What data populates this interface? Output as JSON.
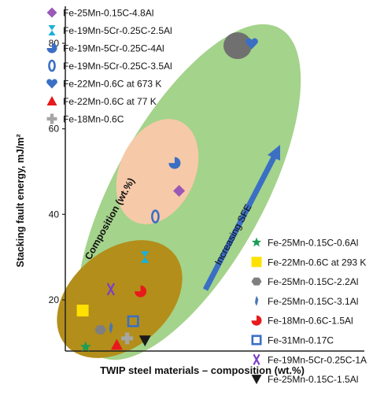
{
  "chart_data": {
    "type": "scatter",
    "title": "",
    "xlabel": "TWIP steel materials – composition (wt.%)",
    "ylabel": "Stacking fault energy, mJ/m²",
    "ylim": [
      0,
      90
    ],
    "yticks": [
      20,
      40,
      60,
      80
    ],
    "grid": false,
    "legend_position": "top-left and bottom-right",
    "x_is_categorical_spread": true,
    "regions": [
      {
        "label": "Composition (wt.%)",
        "color": "#a4d38b",
        "role": "large-ellipse"
      },
      {
        "label": "",
        "color": "#f6c9a8",
        "role": "inner-ellipse"
      },
      {
        "label": "",
        "color": "#b38e1a",
        "role": "lower-ellipse"
      },
      {
        "label": "",
        "color": "#707070",
        "role": "top-circle"
      }
    ],
    "arrow_label": "Increasing SFE",
    "arrow_color": "#3a6fc4",
    "series": [
      {
        "name": "Fe-25Mn-0.15C-4.8Al",
        "marker": "diamond",
        "color": "#9b59b6",
        "points": [
          [
            0.73,
            45.5
          ]
        ]
      },
      {
        "name": "Fe-19Mn-5Cr-0.25C-2.5Al",
        "marker": "hourglass",
        "color": "#1ab0d8",
        "points": [
          [
            0.5,
            30
          ]
        ]
      },
      {
        "name": "Fe-19Mn-5Cr-0.25C-4Al",
        "marker": "pie-three-quarter",
        "color": "#3a6fc4",
        "points": [
          [
            0.7,
            52
          ]
        ]
      },
      {
        "name": "Fe-19Mn-5Cr-0.25C-3.5Al",
        "marker": "ring",
        "color": "#3a6fc4",
        "points": [
          [
            0.57,
            39.5
          ]
        ]
      },
      {
        "name": "Fe-22Mn-0.6C at 673 K",
        "marker": "heart",
        "color": "#3a6fc4",
        "points": [
          [
            1.22,
            80
          ]
        ]
      },
      {
        "name": "Fe-22Mn-0.6C at 77 K",
        "marker": "triangle",
        "color": "#e8191b",
        "points": [
          [
            0.31,
            9.5
          ]
        ]
      },
      {
        "name": "Fe-18Mn-0.6C",
        "marker": "cross",
        "color": "#a6a6a6",
        "points": [
          [
            0.38,
            11
          ]
        ]
      },
      {
        "name": "Fe-25Mn-0.15C-0.6Al",
        "marker": "star",
        "color": "#1b9e54",
        "points": [
          [
            0.1,
            9
          ]
        ]
      },
      {
        "name": "Fe-22Mn-0.6C at 293 K",
        "marker": "square-filled",
        "color": "#ffe100",
        "points": [
          [
            0.08,
            17.5
          ]
        ]
      },
      {
        "name": "Fe-25Mn-0.15C-2.2Al",
        "marker": "hexagon",
        "color": "#7f7f7f",
        "points": [
          [
            0.2,
            13
          ]
        ]
      },
      {
        "name": "Fe-25Mn-0.15C-3.1Al",
        "marker": "sliver",
        "color": "#4a78b0",
        "points": [
          [
            0.27,
            13.5
          ]
        ]
      },
      {
        "name": "Fe-18Mn-0.6C-1.5Al",
        "marker": "pie-three-quarter",
        "color": "#e8191b",
        "points": [
          [
            0.47,
            22
          ]
        ]
      },
      {
        "name": "Fe-31Mn-0.17C",
        "marker": "square-open",
        "color": "#3a6fc4",
        "points": [
          [
            0.42,
            15
          ]
        ]
      },
      {
        "name": "Fe-19Mn-5Cr-0.25C-1A",
        "marker": "x",
        "color": "#7b3fc8",
        "points": [
          [
            0.27,
            22.5
          ]
        ]
      },
      {
        "name": "Fe-25Mn-0.15C-1.5Al",
        "marker": "triangle-down",
        "color": "#1a1a1a",
        "points": [
          [
            0.5,
            10.5
          ]
        ]
      }
    ],
    "legend_top": [
      "Fe-25Mn-0.15C-4.8Al",
      "Fe-19Mn-5Cr-0.25C-2.5Al",
      "Fe-19Mn-5Cr-0.25C-4Al",
      "Fe-19Mn-5Cr-0.25C-3.5Al",
      "Fe-22Mn-0.6C at 673 K",
      "Fe-22Mn-0.6C at 77 K",
      "Fe-18Mn-0.6C"
    ],
    "legend_bottom": [
      "Fe-25Mn-0.15C-0.6Al",
      "Fe-22Mn-0.6C at 293 K",
      "Fe-25Mn-0.15C-2.2Al",
      "Fe-25Mn-0.15C-3.1Al",
      "Fe-18Mn-0.6C-1.5Al",
      "Fe-31Mn-0.17C",
      "Fe-19Mn-5Cr-0.25C-1A",
      "Fe-25Mn-0.15C-1.5Al"
    ]
  }
}
